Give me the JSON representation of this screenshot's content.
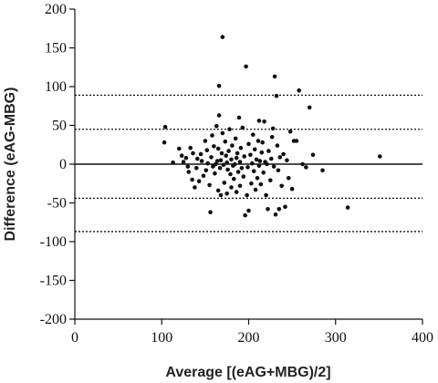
{
  "chart_data": {
    "type": "scatter",
    "title": "",
    "xlabel": "Average [(eAG+MBG)/2]",
    "ylabel": "Difference (eAG-MBG)",
    "xlim": [
      0,
      400
    ],
    "ylim": [
      -200,
      200
    ],
    "xticks": [
      0,
      100,
      200,
      300,
      400
    ],
    "yticks": [
      -200,
      -150,
      -100,
      -50,
      0,
      50,
      100,
      150,
      200
    ],
    "grid": false,
    "legend": "none",
    "reference_lines": [
      {
        "y": 0,
        "style": "solid"
      },
      {
        "y": 89,
        "style": "dotted"
      },
      {
        "y": 45,
        "style": "dotted"
      },
      {
        "y": -44,
        "style": "dotted"
      },
      {
        "y": -87,
        "style": "dotted"
      }
    ],
    "colors": {
      "points": "#111111",
      "lines": "#111111"
    },
    "series": [
      {
        "points": [
          [
            104,
            48
          ],
          [
            103,
            28
          ],
          [
            113,
            2
          ],
          [
            120,
            20
          ],
          [
            123,
            11
          ],
          [
            125,
            3
          ],
          [
            128,
            8
          ],
          [
            130,
            -3
          ],
          [
            131,
            -10
          ],
          [
            133,
            21
          ],
          [
            135,
            -20
          ],
          [
            136,
            14
          ],
          [
            138,
            -30
          ],
          [
            140,
            -5
          ],
          [
            141,
            7
          ],
          [
            143,
            -22
          ],
          [
            145,
            13
          ],
          [
            146,
            4
          ],
          [
            148,
            -15
          ],
          [
            150,
            30
          ],
          [
            151,
            -8
          ],
          [
            152,
            18
          ],
          [
            153,
            1
          ],
          [
            155,
            -27
          ],
          [
            156,
            -62
          ],
          [
            157,
            9
          ],
          [
            158,
            37
          ],
          [
            159,
            -3
          ],
          [
            160,
            23
          ],
          [
            161,
            -12
          ],
          [
            162,
            0
          ],
          [
            163,
            49
          ],
          [
            164,
            4
          ],
          [
            165,
            -34
          ],
          [
            165,
            20
          ],
          [
            166,
            63
          ],
          [
            166,
            101
          ],
          [
            167,
            -5
          ],
          [
            168,
            -40
          ],
          [
            168,
            5
          ],
          [
            169,
            14
          ],
          [
            170,
            40
          ],
          [
            170,
            164
          ],
          [
            171,
            -1
          ],
          [
            172,
            -24
          ],
          [
            173,
            29
          ],
          [
            174,
            11
          ],
          [
            175,
            -38
          ],
          [
            175,
            2
          ],
          [
            176,
            -7
          ],
          [
            177,
            17
          ],
          [
            178,
            45
          ],
          [
            179,
            -13
          ],
          [
            180,
            -30
          ],
          [
            180,
            6
          ],
          [
            181,
            24
          ],
          [
            182,
            -2
          ],
          [
            183,
            -19
          ],
          [
            184,
            0
          ],
          [
            185,
            33
          ],
          [
            186,
            -36
          ],
          [
            186,
            8
          ],
          [
            187,
            14
          ],
          [
            188,
            -10
          ],
          [
            189,
            60
          ],
          [
            190,
            -28
          ],
          [
            190,
            3
          ],
          [
            191,
            21
          ],
          [
            192,
            -5
          ],
          [
            193,
            47
          ],
          [
            194,
            -16
          ],
          [
            195,
            10
          ],
          [
            196,
            -66
          ],
          [
            197,
            126
          ],
          [
            198,
            -40
          ],
          [
            199,
            -4
          ],
          [
            200,
            26
          ],
          [
            200,
            -60
          ],
          [
            202,
            12
          ],
          [
            203,
            -25
          ],
          [
            204,
            1
          ],
          [
            205,
            38
          ],
          [
            206,
            -9
          ],
          [
            207,
            19
          ],
          [
            208,
            -33
          ],
          [
            209,
            6
          ],
          [
            210,
            -18
          ],
          [
            211,
            30
          ],
          [
            212,
            56
          ],
          [
            212,
            -2
          ],
          [
            213,
            4
          ],
          [
            214,
            -26
          ],
          [
            215,
            15
          ],
          [
            216,
            28
          ],
          [
            217,
            -11
          ],
          [
            218,
            55
          ],
          [
            219,
            3
          ],
          [
            220,
            -40
          ],
          [
            221,
            0
          ],
          [
            222,
            -58
          ],
          [
            223,
            17
          ],
          [
            225,
            -21
          ],
          [
            226,
            7
          ],
          [
            227,
            35
          ],
          [
            228,
            46
          ],
          [
            229,
            -3
          ],
          [
            230,
            113
          ],
          [
            231,
            -65
          ],
          [
            232,
            88
          ],
          [
            233,
            24
          ],
          [
            234,
            -8
          ],
          [
            235,
            -58
          ],
          [
            236,
            9
          ],
          [
            238,
            -28
          ],
          [
            240,
            13
          ],
          [
            242,
            -55
          ],
          [
            244,
            5
          ],
          [
            246,
            -18
          ],
          [
            248,
            42
          ],
          [
            250,
            -32
          ],
          [
            252,
            30
          ],
          [
            255,
            30
          ],
          [
            258,
            95
          ],
          [
            262,
            0
          ],
          [
            266,
            -4
          ],
          [
            270,
            73
          ],
          [
            274,
            12
          ],
          [
            285,
            -8
          ],
          [
            314,
            -56
          ],
          [
            351,
            10
          ]
        ]
      }
    ]
  }
}
